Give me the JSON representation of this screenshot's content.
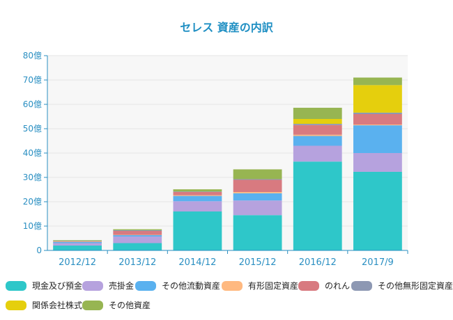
{
  "chart_data": {
    "type": "bar",
    "stacked": true,
    "title": "セレス 資産の内訳",
    "categories": [
      "2012/12",
      "2013/12",
      "2014/12",
      "2015/12",
      "2016/12",
      "2017/9"
    ],
    "y_ticks": [
      "0",
      "10億",
      "20億",
      "30億",
      "40億",
      "50億",
      "60億",
      "70億",
      "80億"
    ],
    "ylim": [
      0,
      80
    ],
    "unit": "億",
    "grid": true,
    "legend_position": "bottom",
    "series": [
      {
        "name": "現金及び預金",
        "color": "#2ec7c9",
        "values": [
          2,
          3,
          16,
          14.5,
          36.5,
          32.3
        ]
      },
      {
        "name": "売掛金",
        "color": "#b6a2de",
        "values": [
          1,
          2.7,
          4.2,
          6,
          6.5,
          7.7
        ]
      },
      {
        "name": "その他流動資産",
        "color": "#5ab1ef",
        "values": [
          0.5,
          0.6,
          2.2,
          3,
          4,
          11.4
        ]
      },
      {
        "name": "有形固定資産",
        "color": "#ffb980",
        "values": [
          0.1,
          0.1,
          0.3,
          0.5,
          0.5,
          0.3
        ]
      },
      {
        "name": "のれん",
        "color": "#d87a80",
        "values": [
          0.2,
          1.6,
          1.3,
          5,
          4,
          4.3
        ]
      },
      {
        "name": "その他無形固定資産",
        "color": "#8d98b3",
        "values": [
          0.1,
          0.3,
          0.2,
          0.3,
          0.5,
          0.6
        ]
      },
      {
        "name": "関係会社株式",
        "color": "#e5cf0d",
        "values": [
          0,
          0,
          0,
          0,
          2,
          11.3
        ]
      },
      {
        "name": "その他資産",
        "color": "#97b552",
        "values": [
          0.3,
          0.4,
          0.9,
          4,
          4.6,
          3.1
        ]
      }
    ]
  }
}
